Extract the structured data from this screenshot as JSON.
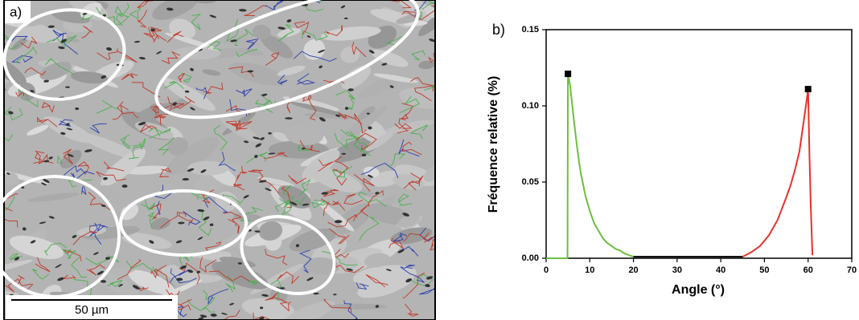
{
  "panel_a": {
    "label": "a)",
    "scale_bar": "50 µm"
  },
  "panel_b": {
    "label": "b)"
  },
  "chart_data": {
    "type": "line",
    "xlabel": "Angle (°)",
    "ylabel": "Fréquence relative (%)",
    "xlim": [
      0,
      70
    ],
    "xticks": [
      0,
      10,
      20,
      30,
      40,
      50,
      60,
      70
    ],
    "ylim": [
      0,
      0.15
    ],
    "yticks": [
      {
        "value": 0,
        "label": "0.00"
      },
      0.05,
      {
        "value": 0.1,
        "label": "0.10"
      },
      0.15
    ],
    "series": [
      {
        "color": "#6cbf3f",
        "x": [
          0,
          4.9,
          5,
          5.5,
          6,
          6.5,
          7,
          7.5,
          8,
          9,
          10,
          11,
          12,
          13,
          14,
          15,
          16,
          17,
          18,
          19,
          20
        ],
        "values": [
          0,
          0,
          0.121,
          0.113,
          0.1,
          0.087,
          0.075,
          0.064,
          0.055,
          0.041,
          0.031,
          0.023,
          0.018,
          0.013,
          0.01,
          0.008,
          0.006,
          0.005,
          0.003,
          0.002,
          0.001
        ]
      },
      {
        "color": "#000000",
        "x": [
          20,
          25,
          30,
          35,
          40,
          45
        ],
        "values": [
          0.001,
          0.001,
          0.001,
          0.001,
          0.001,
          0.001
        ]
      },
      {
        "color": "#e8312b",
        "x": [
          45,
          47,
          49,
          51,
          53,
          55,
          56,
          57,
          58,
          59,
          59.5,
          60,
          60.3,
          60.6,
          61
        ],
        "values": [
          0.001,
          0.004,
          0.008,
          0.015,
          0.025,
          0.04,
          0.048,
          0.058,
          0.07,
          0.09,
          0.1,
          0.111,
          0.07,
          0.035,
          0.002
        ]
      },
      {
        "color": "#000000",
        "marker": "square",
        "line": false,
        "x": [
          5,
          60
        ],
        "values": [
          0.121,
          0.111
        ]
      }
    ]
  }
}
